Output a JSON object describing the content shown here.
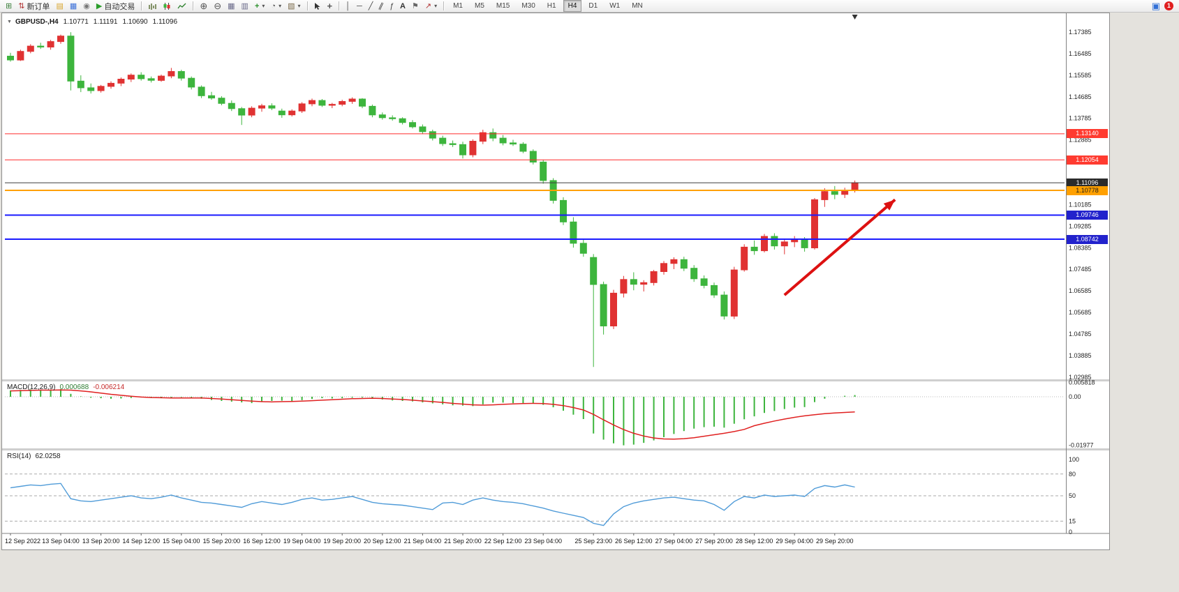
{
  "toolbar": {
    "new_order_label": "新订单",
    "autotrade_label": "自动交易",
    "timeframes": [
      "M1",
      "M5",
      "M15",
      "M30",
      "H1",
      "H4",
      "D1",
      "W1",
      "MN"
    ],
    "active_timeframe": "H4",
    "notification_count": "1"
  },
  "icons": {
    "new_chart": "⊞",
    "new_order": "⇅",
    "folder": "▤",
    "editor": "▦",
    "terminal": "◉",
    "autotrade_play": "▶",
    "zoom_in": "⊕",
    "zoom_out": "⊖",
    "tile": "▦",
    "cascade": "▥",
    "indicators": "+",
    "periods": "◔",
    "template": "▧",
    "caret": "▾",
    "crosshair": "+",
    "vline": "│",
    "hline": "─",
    "trendline": "╱",
    "channel": "∥",
    "fibonacci": "ƒ",
    "text": "A",
    "label": "⚑",
    "arrows": "↗",
    "one_click": "▼",
    "window_blue": "▣",
    "last_bar_marker": "▼"
  },
  "chart": {
    "symbol_title": "GBPUSD-,H4",
    "open": "1.10771",
    "high": "1.11191",
    "low": "1.10690",
    "close": "1.11096"
  },
  "chart_data": {
    "type": "candlestick",
    "symbol": "GBPUSD-,H4",
    "timeframe": "H4",
    "up_color": "#e03232",
    "down_color": "#3db53d",
    "price_range": {
      "top": 1.1817,
      "bottom": 1.0289
    },
    "price_axis_ticks": [
      "1.17385",
      "1.16485",
      "1.15585",
      "1.14685",
      "1.13785",
      "1.12885",
      "1.10185",
      "1.09285",
      "1.08385",
      "1.07485",
      "1.06585",
      "1.05685",
      "1.04785",
      "1.03885",
      "1.02985"
    ],
    "hlines": [
      {
        "price": 1.1314,
        "label": "1.13140",
        "color": "#ff2b2b",
        "width": 1,
        "badge_bg": "#ff3b30",
        "badge_text": "#ffffff",
        "name": "resistance-line-1"
      },
      {
        "price": 1.12054,
        "label": "1.12054",
        "color": "#ff2b2b",
        "width": 1,
        "badge_bg": "#ff3b30",
        "badge_text": "#ffffff",
        "name": "resistance-line-2"
      },
      {
        "price": 1.11096,
        "label": "1.11096",
        "color": "#3c3c3c",
        "width": 1,
        "badge_bg": "#2b2b2b",
        "badge_text": "#ffffff",
        "name": "current-price-line"
      },
      {
        "price": 1.10778,
        "label": "1.10778",
        "color": "#ffa000",
        "width": 2,
        "badge_bg": "#ffa000",
        "badge_text": "#1a1a1a",
        "name": "orange-level-line"
      },
      {
        "price": 1.09746,
        "label": "1.09746",
        "color": "#1a1aff",
        "width": 2,
        "badge_bg": "#2222cc",
        "badge_text": "#ffffff",
        "name": "support-line-1"
      },
      {
        "price": 1.08742,
        "label": "1.08742",
        "color": "#1a1aff",
        "width": 2,
        "badge_bg": "#2222cc",
        "badge_text": "#ffffff",
        "name": "support-line-2"
      }
    ],
    "arrow": {
      "x1_index": 77,
      "price1": 1.0641,
      "x2_index": 88,
      "price2": 1.1039,
      "color": "#dd1111"
    },
    "time_labels": [
      {
        "t": "12 Sep 2022",
        "i": 0
      },
      {
        "t": "13 Sep 04:00",
        "i": 5
      },
      {
        "t": "13 Sep 20:00",
        "i": 9
      },
      {
        "t": "14 Sep 12:00",
        "i": 13
      },
      {
        "t": "15 Sep 04:00",
        "i": 17
      },
      {
        "t": "15 Sep 20:00",
        "i": 21
      },
      {
        "t": "16 Sep 12:00",
        "i": 25
      },
      {
        "t": "19 Sep 04:00",
        "i": 29
      },
      {
        "t": "19 Sep 20:00",
        "i": 33
      },
      {
        "t": "20 Sep 12:00",
        "i": 37
      },
      {
        "t": "21 Sep 04:00",
        "i": 41
      },
      {
        "t": "21 Sep 20:00",
        "i": 45
      },
      {
        "t": "22 Sep 12:00",
        "i": 49
      },
      {
        "t": "23 Sep 04:00",
        "i": 53
      },
      {
        "t": "25 Sep 23:00",
        "i": 58
      },
      {
        "t": "26 Sep 12:00",
        "i": 62
      },
      {
        "t": "27 Sep 04:00",
        "i": 66
      },
      {
        "t": "27 Sep 20:00",
        "i": 70
      },
      {
        "t": "28 Sep 12:00",
        "i": 74
      },
      {
        "t": "29 Sep 04:00",
        "i": 78
      },
      {
        "t": "29 Sep 20:00",
        "i": 82
      }
    ],
    "candles": [
      [
        1.1638,
        1.1652,
        1.1615,
        1.1622
      ],
      [
        1.1622,
        1.1665,
        1.1618,
        1.1658
      ],
      [
        1.1658,
        1.1688,
        1.165,
        1.168
      ],
      [
        1.168,
        1.1694,
        1.1668,
        1.1676
      ],
      [
        1.1676,
        1.1706,
        1.1665,
        1.1699
      ],
      [
        1.1699,
        1.1728,
        1.169,
        1.1722
      ],
      [
        1.1722,
        1.1738,
        1.1495,
        1.1534
      ],
      [
        1.1534,
        1.1558,
        1.1488,
        1.1506
      ],
      [
        1.1506,
        1.1524,
        1.1482,
        1.1494
      ],
      [
        1.1494,
        1.1518,
        1.1486,
        1.1512
      ],
      [
        1.1512,
        1.1533,
        1.1502,
        1.1525
      ],
      [
        1.1525,
        1.1549,
        1.1513,
        1.1542
      ],
      [
        1.1542,
        1.1566,
        1.153,
        1.1559
      ],
      [
        1.1559,
        1.1571,
        1.1536,
        1.1544
      ],
      [
        1.1544,
        1.1553,
        1.1528,
        1.1537
      ],
      [
        1.1537,
        1.1561,
        1.1531,
        1.1555
      ],
      [
        1.1555,
        1.1589,
        1.1546,
        1.1574
      ],
      [
        1.1574,
        1.1581,
        1.1536,
        1.1546
      ],
      [
        1.1546,
        1.1553,
        1.1499,
        1.1509
      ],
      [
        1.1509,
        1.1516,
        1.1463,
        1.1473
      ],
      [
        1.1473,
        1.1489,
        1.1456,
        1.1463
      ],
      [
        1.1463,
        1.1471,
        1.1433,
        1.1441
      ],
      [
        1.1441,
        1.1453,
        1.1409,
        1.1419
      ],
      [
        1.1419,
        1.1426,
        1.1351,
        1.1392
      ],
      [
        1.1392,
        1.1429,
        1.1383,
        1.1421
      ],
      [
        1.1421,
        1.1439,
        1.1406,
        1.1431
      ],
      [
        1.1431,
        1.1441,
        1.1413,
        1.1421
      ],
      [
        1.1409,
        1.1419,
        1.1381,
        1.1393
      ],
      [
        1.1393,
        1.1416,
        1.1386,
        1.1409
      ],
      [
        1.1409,
        1.1446,
        1.1401,
        1.1439
      ],
      [
        1.1439,
        1.1461,
        1.1429,
        1.1453
      ],
      [
        1.1453,
        1.1459,
        1.1426,
        1.1433
      ],
      [
        1.1433,
        1.1443,
        1.1421,
        1.1437
      ],
      [
        1.1437,
        1.1456,
        1.1429,
        1.1449
      ],
      [
        1.1449,
        1.1466,
        1.1439,
        1.1459
      ],
      [
        1.1459,
        1.1463,
        1.1421,
        1.1429
      ],
      [
        1.1429,
        1.1436,
        1.1383,
        1.1393
      ],
      [
        1.1393,
        1.1403,
        1.1373,
        1.1381
      ],
      [
        1.1381,
        1.1391,
        1.1369,
        1.1377
      ],
      [
        1.1377,
        1.1383,
        1.1353,
        1.1361
      ],
      [
        1.1361,
        1.1371,
        1.1336,
        1.1343
      ],
      [
        1.1343,
        1.1353,
        1.1313,
        1.1323
      ],
      [
        1.1323,
        1.1331,
        1.1286,
        1.1296
      ],
      [
        1.1296,
        1.1306,
        1.1263,
        1.1273
      ],
      [
        1.1273,
        1.1286,
        1.1259,
        1.1269
      ],
      [
        1.1269,
        1.1281,
        1.1211,
        1.1226
      ],
      [
        1.1226,
        1.1291,
        1.1216,
        1.1283
      ],
      [
        1.1283,
        1.1331,
        1.1271,
        1.1319
      ],
      [
        1.1319,
        1.1336,
        1.1283,
        1.1296
      ],
      [
        1.1296,
        1.1309,
        1.1266,
        1.1276
      ],
      [
        1.1276,
        1.1289,
        1.1263,
        1.1271
      ],
      [
        1.1271,
        1.1279,
        1.1233,
        1.1241
      ],
      [
        1.1241,
        1.1249,
        1.1186,
        1.1196
      ],
      [
        1.1196,
        1.1206,
        1.1106,
        1.1119
      ],
      [
        1.1119,
        1.1129,
        1.1023,
        1.1036
      ],
      [
        1.1036,
        1.1049,
        1.0933,
        1.0946
      ],
      [
        1.0946,
        1.0966,
        1.0839,
        1.0857
      ],
      [
        1.0857,
        1.0872,
        1.0801,
        1.0815
      ],
      [
        1.0798,
        1.0812,
        1.0341,
        1.0685
      ],
      [
        1.0685,
        1.0697,
        1.0476,
        1.0512
      ],
      [
        1.0512,
        1.0663,
        1.0499,
        1.0649
      ],
      [
        1.0649,
        1.0721,
        1.0631,
        1.0706
      ],
      [
        1.0706,
        1.0736,
        1.0661,
        1.0686
      ],
      [
        1.0686,
        1.0703,
        1.0656,
        1.0693
      ],
      [
        1.0693,
        1.0746,
        1.0681,
        1.0739
      ],
      [
        1.0739,
        1.0783,
        1.0726,
        1.0773
      ],
      [
        1.0773,
        1.0799,
        1.0749,
        1.0789
      ],
      [
        1.0789,
        1.0801,
        1.0741,
        1.0753
      ],
      [
        1.0753,
        1.0766,
        1.0696,
        1.0709
      ],
      [
        1.0709,
        1.0723,
        1.0669,
        1.0681
      ],
      [
        1.0681,
        1.0693,
        1.0629,
        1.0641
      ],
      [
        1.0641,
        1.0656,
        1.0539,
        1.0553
      ],
      [
        1.0553,
        1.0759,
        1.0541,
        1.0746
      ],
      [
        1.0746,
        1.0853,
        1.0739,
        1.0841
      ],
      [
        1.0841,
        1.0869,
        1.0809,
        1.0826
      ],
      [
        1.0826,
        1.0896,
        1.0819,
        1.0886
      ],
      [
        1.0886,
        1.0899,
        1.0831,
        1.0846
      ],
      [
        1.0846,
        1.0876,
        1.0811,
        1.0863
      ],
      [
        1.0863,
        1.0887,
        1.0841,
        1.0871
      ],
      [
        1.0871,
        1.0883,
        1.0822,
        1.0838
      ],
      [
        1.0838,
        1.1046,
        1.0831,
        1.1039
      ],
      [
        1.1039,
        1.1087,
        1.1009,
        1.1073
      ],
      [
        1.1073,
        1.1096,
        1.1041,
        1.1061
      ],
      [
        1.1061,
        1.1089,
        1.1046,
        1.1077
      ],
      [
        1.10771,
        1.11191,
        1.1069,
        1.11096
      ]
    ],
    "macd": {
      "label": "MACD(12,26,9)",
      "value_main": "0.000688",
      "value_signal": "-0.006214",
      "axis_ticks": [
        "0.005818",
        "0.00",
        "-0.01977"
      ],
      "scale_max": 0.005818,
      "scale_min": -0.01977,
      "hist_color": "#3db53d",
      "signal_color": "#e02020",
      "histogram": [
        0.0026,
        0.0028,
        0.003,
        0.0028,
        0.0029,
        0.0031,
        0.0012,
        0.0002,
        -0.0004,
        -0.0006,
        -0.0008,
        -0.0007,
        -0.0005,
        -0.0003,
        -0.0004,
        -0.0006,
        -0.0005,
        -0.0002,
        -0.0004,
        -0.0008,
        -0.0013,
        -0.0017,
        -0.002,
        -0.0023,
        -0.0026,
        -0.0021,
        -0.0017,
        -0.0016,
        -0.0017,
        -0.0014,
        -0.0009,
        -0.0006,
        -0.0007,
        -0.0006,
        -0.0004,
        -0.0003,
        -0.0006,
        -0.0011,
        -0.0015,
        -0.0017,
        -0.0019,
        -0.0023,
        -0.0027,
        -0.0031,
        -0.0035,
        -0.0036,
        -0.0038,
        -0.0031,
        -0.0024,
        -0.0024,
        -0.0026,
        -0.0026,
        -0.0028,
        -0.0033,
        -0.0043,
        -0.0057,
        -0.0073,
        -0.0091,
        -0.015,
        -0.0175,
        -0.019,
        -0.0198,
        -0.0195,
        -0.0188,
        -0.0178,
        -0.0165,
        -0.0152,
        -0.014,
        -0.013,
        -0.0124,
        -0.0122,
        -0.0126,
        -0.011,
        -0.0092,
        -0.008,
        -0.0066,
        -0.0058,
        -0.005,
        -0.0044,
        -0.0042,
        -0.0022,
        -0.0008,
        0.0,
        0.0004,
        0.000688
      ],
      "signal": [
        0.0024,
        0.0025,
        0.0026,
        0.0027,
        0.0027,
        0.0028,
        0.0027,
        0.0024,
        0.002,
        0.0015,
        0.001,
        0.0006,
        0.0002,
        -0.0001,
        -0.0003,
        -0.0004,
        -0.0005,
        -0.0005,
        -0.0005,
        -0.0005,
        -0.0007,
        -0.0009,
        -0.0012,
        -0.0015,
        -0.0018,
        -0.002,
        -0.0021,
        -0.002,
        -0.0019,
        -0.0018,
        -0.0016,
        -0.0014,
        -0.0012,
        -0.001,
        -0.0008,
        -0.0007,
        -0.0006,
        -0.0007,
        -0.0009,
        -0.0011,
        -0.0014,
        -0.0017,
        -0.002,
        -0.0023,
        -0.0027,
        -0.003,
        -0.0033,
        -0.0034,
        -0.0033,
        -0.0031,
        -0.0029,
        -0.0028,
        -0.0027,
        -0.0028,
        -0.0031,
        -0.0036,
        -0.0044,
        -0.0054,
        -0.0072,
        -0.0094,
        -0.0115,
        -0.0134,
        -0.0149,
        -0.016,
        -0.0168,
        -0.0172,
        -0.0173,
        -0.0171,
        -0.0167,
        -0.0161,
        -0.0155,
        -0.0149,
        -0.0142,
        -0.0133,
        -0.0118,
        -0.0108,
        -0.0099,
        -0.0091,
        -0.0084,
        -0.0078,
        -0.0073,
        -0.0069,
        -0.0066,
        -0.0064,
        -0.006214
      ]
    },
    "rsi": {
      "label": "RSI(14)",
      "value": "62.0258",
      "line_color": "#4f9bd8",
      "axis_ticks": [
        "100",
        "80",
        "50",
        "15",
        "0"
      ],
      "levels": [
        80,
        50,
        15
      ],
      "values": [
        61,
        63,
        65,
        64,
        66,
        67,
        46,
        43,
        42,
        44,
        46,
        48,
        50,
        47,
        46,
        48,
        51,
        47,
        44,
        41,
        40,
        38,
        36,
        34,
        39,
        42,
        40,
        38,
        41,
        45,
        47,
        44,
        45,
        47,
        49,
        45,
        41,
        39,
        38,
        37,
        35,
        33,
        31,
        40,
        41,
        38,
        44,
        47,
        44,
        42,
        41,
        39,
        36,
        33,
        29,
        26,
        23,
        20,
        12,
        9,
        25,
        35,
        40,
        43,
        45,
        47,
        48,
        46,
        44,
        43,
        38,
        30,
        42,
        49,
        47,
        51,
        49,
        50,
        51,
        49,
        60,
        64,
        62,
        65,
        62.0258
      ]
    }
  }
}
